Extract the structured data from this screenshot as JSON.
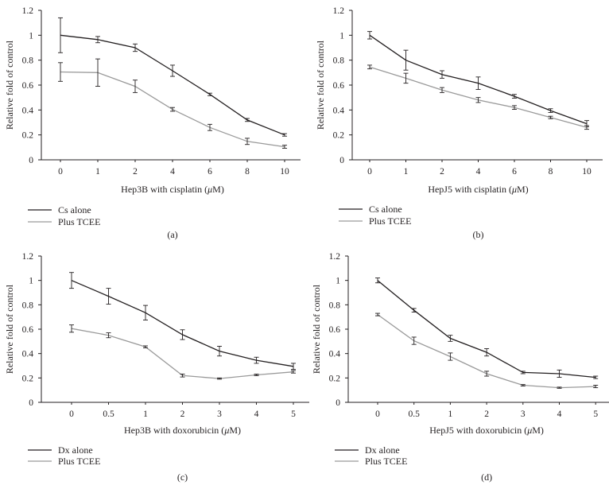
{
  "figure": {
    "panels": [
      {
        "panel_label": "(a)",
        "ylabel": "Relative fold of control",
        "xlabel_prefix": "Hep3B with cisplatin (",
        "xlabel_unit": "μ",
        "xlabel_suffix": "M)",
        "legend": [
          "Cs alone",
          "Plus TCEE"
        ]
      },
      {
        "panel_label": "(b)",
        "ylabel": "Relative fold of control",
        "xlabel_prefix": "HepJ5 with cisplatin (",
        "xlabel_unit": "μ",
        "xlabel_suffix": "M)",
        "legend": [
          "Cs alone",
          "Plus TCEE"
        ]
      },
      {
        "panel_label": "(c)",
        "ylabel": "Relative fold of control",
        "xlabel_prefix": "Hep3B with doxorubicin (",
        "xlabel_unit": "μ",
        "xlabel_suffix": "M)",
        "legend": [
          "Dx alone",
          "Plus TCEE"
        ]
      },
      {
        "panel_label": "(d)",
        "ylabel": "Relative fold of control",
        "xlabel_prefix": "HepJ5 with doxorubicin (",
        "xlabel_unit": "μ",
        "xlabel_suffix": "M)",
        "legend": [
          "Dx alone",
          "Plus TCEE"
        ]
      }
    ]
  },
  "chart_data": [
    {
      "type": "line",
      "categories": [
        "0",
        "1",
        "2",
        "4",
        "6",
        "8",
        "10"
      ],
      "xlabel": "Hep3B with cisplatin (μM)",
      "ylabel": "Relative fold of control",
      "ylim": [
        0,
        1.2
      ],
      "yticks": [
        "0",
        "0.2",
        "0.4",
        "0.6",
        "0.8",
        "1",
        "1.2"
      ],
      "grid": false,
      "legend_position": "bottom-left",
      "series": [
        {
          "name": "Cs alone",
          "color": "#231f20",
          "values": [
            1.0,
            0.965,
            0.9,
            0.715,
            0.525,
            0.32,
            0.2
          ],
          "errors": [
            0.14,
            0.025,
            0.03,
            0.045,
            0.01,
            0.012,
            0.01
          ]
        },
        {
          "name": "Plus TCEE",
          "color": "#9a9a9a",
          "values": [
            0.705,
            0.7,
            0.59,
            0.405,
            0.26,
            0.148,
            0.105
          ],
          "errors": [
            0.075,
            0.11,
            0.05,
            0.015,
            0.025,
            0.025,
            0.012
          ]
        }
      ]
    },
    {
      "type": "line",
      "categories": [
        "0",
        "1",
        "2",
        "4",
        "6",
        "8",
        "10"
      ],
      "xlabel": "HepJ5 with cisplatin (μM)",
      "ylabel": "Relative fold of control",
      "ylim": [
        0,
        1.2
      ],
      "yticks": [
        "0",
        "0.2",
        "0.4",
        "0.6",
        "0.8",
        "1",
        "1.2"
      ],
      "grid": false,
      "legend_position": "bottom-left",
      "series": [
        {
          "name": "Cs alone",
          "color": "#231f20",
          "values": [
            1.0,
            0.8,
            0.685,
            0.615,
            0.51,
            0.395,
            0.29
          ],
          "errors": [
            0.03,
            0.08,
            0.03,
            0.05,
            0.015,
            0.015,
            0.025
          ]
        },
        {
          "name": "Plus TCEE",
          "color": "#9a9a9a",
          "values": [
            0.745,
            0.655,
            0.56,
            0.48,
            0.42,
            0.34,
            0.26
          ],
          "errors": [
            0.015,
            0.04,
            0.02,
            0.02,
            0.015,
            0.01,
            0.015
          ]
        }
      ]
    },
    {
      "type": "line",
      "categories": [
        "0",
        "0.5",
        "1",
        "2",
        "3",
        "4",
        "5"
      ],
      "xlabel": "Hep3B with doxorubicin (μM)",
      "ylabel": "Relative fold of control",
      "ylim": [
        0,
        1.2
      ],
      "yticks": [
        "0",
        "0.2",
        "0.4",
        "0.6",
        "0.8",
        "1",
        "1.2"
      ],
      "grid": false,
      "legend_position": "bottom-left",
      "series": [
        {
          "name": "Dx alone",
          "color": "#231f20",
          "values": [
            1.0,
            0.87,
            0.735,
            0.555,
            0.42,
            0.345,
            0.295
          ],
          "errors": [
            0.065,
            0.065,
            0.06,
            0.04,
            0.04,
            0.025,
            0.025
          ]
        },
        {
          "name": "Plus TCEE",
          "color": "#9a9a9a",
          "values": [
            0.605,
            0.55,
            0.455,
            0.22,
            0.195,
            0.225,
            0.25
          ],
          "errors": [
            0.03,
            0.02,
            0.008,
            0.012,
            0.005,
            0.006,
            0.01
          ]
        }
      ]
    },
    {
      "type": "line",
      "categories": [
        "0",
        "0.5",
        "1",
        "2",
        "3",
        "4",
        "5"
      ],
      "xlabel": "HepJ5 with doxorubicin (μM)",
      "ylabel": "Relative fold of control",
      "ylim": [
        0,
        1.2
      ],
      "yticks": [
        "0",
        "0.2",
        "0.4",
        "0.6",
        "0.8",
        "1",
        "1.2"
      ],
      "grid": false,
      "legend_position": "bottom-left",
      "series": [
        {
          "name": "Dx alone",
          "color": "#231f20",
          "values": [
            1.0,
            0.755,
            0.525,
            0.41,
            0.245,
            0.235,
            0.205
          ],
          "errors": [
            0.02,
            0.015,
            0.025,
            0.03,
            0.01,
            0.03,
            0.01
          ]
        },
        {
          "name": "Plus TCEE",
          "color": "#9a9a9a",
          "values": [
            0.72,
            0.505,
            0.375,
            0.235,
            0.14,
            0.12,
            0.13
          ],
          "errors": [
            0.01,
            0.03,
            0.03,
            0.02,
            0.006,
            0.005,
            0.01
          ]
        }
      ]
    }
  ]
}
